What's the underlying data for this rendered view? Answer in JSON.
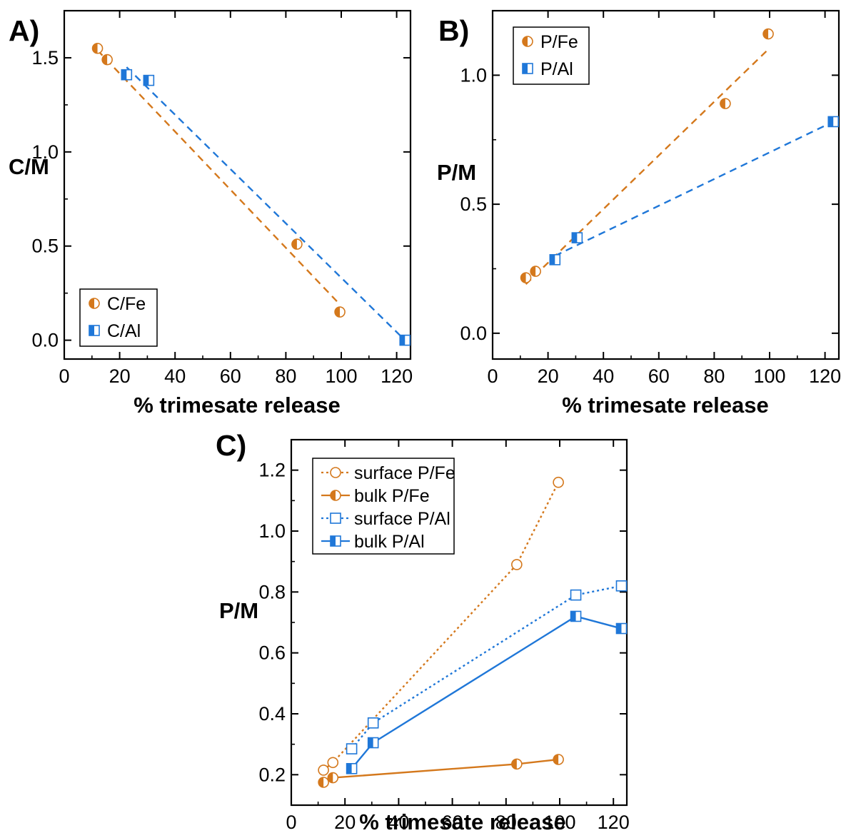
{
  "colors": {
    "orange": "#d4781c",
    "blue": "#1f77d8",
    "axis": "#000000"
  },
  "chart_data": [
    {
      "panel": "A)",
      "type": "scatter",
      "xlabel": "% trimesate release",
      "ylabel": "C/M",
      "xlim": [
        0,
        125
      ],
      "ylim": [
        -0.1,
        1.75
      ],
      "xticks": [
        "0",
        "20",
        "40",
        "60",
        "80",
        "100",
        "120"
      ],
      "yticks": [
        "0.0",
        "0.5",
        "1.0",
        "1.5"
      ],
      "legend": "bottom-left",
      "series": [
        {
          "name": "C/Fe",
          "color": "orange",
          "marker": "circle-half",
          "x": [
            12,
            15.5,
            84,
            99.5
          ],
          "y": [
            1.55,
            1.49,
            0.51,
            0.15
          ],
          "fit": {
            "style": "dashed",
            "x": [
              12,
              99.5
            ],
            "y": [
              1.54,
              0.19
            ]
          }
        },
        {
          "name": "C/Al",
          "color": "blue",
          "marker": "square-half",
          "x": [
            22.5,
            30.5,
            123
          ],
          "y": [
            1.41,
            1.38,
            0.0
          ],
          "fit": {
            "style": "dashed",
            "x": [
              22.5,
              123
            ],
            "y": [
              1.45,
              0.0
            ]
          }
        }
      ]
    },
    {
      "panel": "B)",
      "type": "scatter",
      "xlabel": "% trimesate release",
      "ylabel": "P/M",
      "xlim": [
        0,
        125
      ],
      "ylim": [
        -0.1,
        1.25
      ],
      "xticks": [
        "0",
        "20",
        "40",
        "60",
        "80",
        "100",
        "120"
      ],
      "yticks": [
        "0.0",
        "0.5",
        "1.0"
      ],
      "legend": "top-left",
      "series": [
        {
          "name": "P/Fe",
          "color": "orange",
          "marker": "circle-half",
          "x": [
            12,
            15.5,
            84,
            99.5
          ],
          "y": [
            0.215,
            0.24,
            0.89,
            1.16
          ],
          "fit": {
            "style": "dashed",
            "x": [
              12,
              99.5
            ],
            "y": [
              0.19,
              1.1
            ]
          }
        },
        {
          "name": "P/Al",
          "color": "blue",
          "marker": "square-half",
          "x": [
            22.5,
            30.5,
            123
          ],
          "y": [
            0.285,
            0.37,
            0.82
          ],
          "fit": {
            "style": "dashed",
            "x": [
              22.5,
              123
            ],
            "y": [
              0.3,
              0.82
            ]
          }
        }
      ]
    },
    {
      "panel": "C)",
      "type": "line",
      "xlabel": "% trimesate release",
      "ylabel": "P/M",
      "xlim": [
        0,
        125
      ],
      "ylim": [
        0.1,
        1.3
      ],
      "xticks": [
        "0",
        "20",
        "40",
        "60",
        "80",
        "100",
        "120"
      ],
      "yticks": [
        "0.2",
        "0.4",
        "0.6",
        "0.8",
        "1.0",
        "1.2"
      ],
      "legend": "top-left",
      "series": [
        {
          "name": "surface P/Fe",
          "color": "orange",
          "marker": "circle-open",
          "line": "dotted",
          "x": [
            12,
            15.5,
            84,
            99.5
          ],
          "y": [
            0.215,
            0.24,
            0.89,
            1.16
          ]
        },
        {
          "name": "bulk P/Fe",
          "color": "orange",
          "marker": "circle-half",
          "line": "solid",
          "x": [
            12,
            15.5,
            84,
            99.5
          ],
          "y": [
            0.175,
            0.19,
            0.235,
            0.25
          ]
        },
        {
          "name": "surface P/Al",
          "color": "blue",
          "marker": "square-open",
          "line": "dotted",
          "x": [
            22.5,
            30.5,
            106,
            123
          ],
          "y": [
            0.285,
            0.37,
            0.79,
            0.82
          ]
        },
        {
          "name": "bulk P/Al",
          "color": "blue",
          "marker": "square-half",
          "line": "solid",
          "x": [
            22.5,
            30.5,
            106,
            123
          ],
          "y": [
            0.22,
            0.305,
            0.72,
            0.68
          ]
        }
      ]
    }
  ]
}
